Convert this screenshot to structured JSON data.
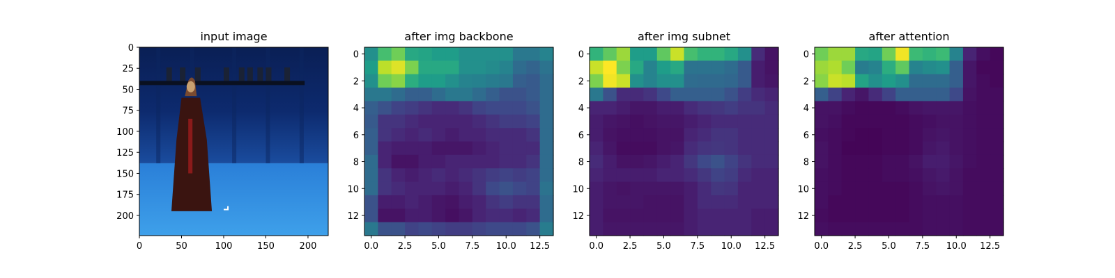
{
  "chart_data": [
    {
      "type": "image",
      "title": "input image",
      "xlim": [
        0,
        224
      ],
      "ylim": [
        224,
        0
      ],
      "xticks": [
        0,
        50,
        100,
        150,
        200
      ],
      "yticks": [
        0,
        25,
        50,
        75,
        100,
        125,
        150,
        175,
        200
      ],
      "colors": {
        "backdrop": "#0d2a6e",
        "floor": "#2f8fe0",
        "rail": "#0a1020",
        "figure": "#3a1410"
      }
    },
    {
      "type": "heatmap",
      "title": "after img backbone",
      "colormap": "viridis",
      "xticks": [
        "0.0",
        "2.5",
        "5.0",
        "7.5",
        "10.0",
        "12.5"
      ],
      "yticks": [
        "0",
        "2",
        "4",
        "6",
        "8",
        "10",
        "12"
      ],
      "values": [
        [
          0.5,
          0.7,
          0.78,
          0.6,
          0.58,
          0.55,
          0.55,
          0.5,
          0.5,
          0.5,
          0.5,
          0.4,
          0.4,
          0.45
        ],
        [
          0.55,
          0.9,
          0.95,
          0.8,
          0.6,
          0.6,
          0.6,
          0.5,
          0.5,
          0.48,
          0.45,
          0.35,
          0.32,
          0.38
        ],
        [
          0.5,
          0.78,
          0.82,
          0.62,
          0.55,
          0.55,
          0.5,
          0.45,
          0.44,
          0.42,
          0.4,
          0.3,
          0.28,
          0.35
        ],
        [
          0.4,
          0.4,
          0.35,
          0.3,
          0.3,
          0.35,
          0.4,
          0.4,
          0.35,
          0.3,
          0.25,
          0.25,
          0.28,
          0.35
        ],
        [
          0.3,
          0.25,
          0.2,
          0.18,
          0.15,
          0.12,
          0.12,
          0.15,
          0.2,
          0.22,
          0.22,
          0.22,
          0.25,
          0.35
        ],
        [
          0.28,
          0.15,
          0.15,
          0.12,
          0.1,
          0.1,
          0.1,
          0.1,
          0.12,
          0.15,
          0.18,
          0.18,
          0.2,
          0.35
        ],
        [
          0.3,
          0.15,
          0.12,
          0.1,
          0.12,
          0.1,
          0.08,
          0.1,
          0.1,
          0.12,
          0.12,
          0.12,
          0.15,
          0.35
        ],
        [
          0.3,
          0.1,
          0.08,
          0.08,
          0.08,
          0.06,
          0.06,
          0.06,
          0.08,
          0.1,
          0.12,
          0.12,
          0.12,
          0.35
        ],
        [
          0.35,
          0.1,
          0.05,
          0.05,
          0.08,
          0.08,
          0.1,
          0.1,
          0.1,
          0.1,
          0.12,
          0.12,
          0.15,
          0.35
        ],
        [
          0.35,
          0.15,
          0.1,
          0.08,
          0.1,
          0.12,
          0.1,
          0.12,
          0.15,
          0.18,
          0.2,
          0.18,
          0.2,
          0.35
        ],
        [
          0.35,
          0.15,
          0.12,
          0.1,
          0.1,
          0.1,
          0.08,
          0.1,
          0.15,
          0.22,
          0.25,
          0.22,
          0.2,
          0.38
        ],
        [
          0.25,
          0.08,
          0.08,
          0.1,
          0.08,
          0.06,
          0.05,
          0.08,
          0.1,
          0.15,
          0.18,
          0.15,
          0.15,
          0.35
        ],
        [
          0.25,
          0.05,
          0.05,
          0.08,
          0.08,
          0.06,
          0.04,
          0.06,
          0.1,
          0.12,
          0.12,
          0.1,
          0.12,
          0.35
        ],
        [
          0.4,
          0.25,
          0.25,
          0.2,
          0.22,
          0.2,
          0.18,
          0.18,
          0.2,
          0.22,
          0.22,
          0.22,
          0.25,
          0.42
        ]
      ]
    },
    {
      "type": "heatmap",
      "title": "after img subnet",
      "colormap": "viridis",
      "xticks": [
        "0.0",
        "2.5",
        "5.0",
        "7.5",
        "10.0",
        "12.5"
      ],
      "yticks": [
        "0",
        "2",
        "4",
        "6",
        "8",
        "10",
        "12"
      ],
      "values": [
        [
          0.65,
          0.75,
          0.85,
          0.55,
          0.55,
          0.75,
          0.92,
          0.7,
          0.65,
          0.65,
          0.6,
          0.5,
          0.12,
          0.05
        ],
        [
          0.92,
          1.0,
          0.8,
          0.6,
          0.45,
          0.55,
          0.6,
          0.38,
          0.38,
          0.38,
          0.35,
          0.28,
          0.08,
          0.05
        ],
        [
          0.8,
          0.98,
          0.92,
          0.5,
          0.45,
          0.5,
          0.5,
          0.35,
          0.34,
          0.34,
          0.33,
          0.28,
          0.08,
          0.06
        ],
        [
          0.4,
          0.25,
          0.12,
          0.12,
          0.15,
          0.22,
          0.3,
          0.3,
          0.3,
          0.3,
          0.25,
          0.18,
          0.12,
          0.1
        ],
        [
          0.1,
          0.1,
          0.08,
          0.06,
          0.06,
          0.08,
          0.08,
          0.12,
          0.15,
          0.16,
          0.18,
          0.15,
          0.15,
          0.12
        ],
        [
          0.08,
          0.06,
          0.05,
          0.04,
          0.05,
          0.06,
          0.06,
          0.08,
          0.1,
          0.12,
          0.12,
          0.12,
          0.12,
          0.12
        ],
        [
          0.08,
          0.05,
          0.04,
          0.04,
          0.04,
          0.05,
          0.05,
          0.1,
          0.12,
          0.15,
          0.15,
          0.12,
          0.12,
          0.12
        ],
        [
          0.1,
          0.06,
          0.03,
          0.03,
          0.03,
          0.05,
          0.06,
          0.12,
          0.15,
          0.16,
          0.15,
          0.12,
          0.12,
          0.12
        ],
        [
          0.12,
          0.08,
          0.05,
          0.05,
          0.06,
          0.08,
          0.1,
          0.16,
          0.22,
          0.25,
          0.2,
          0.15,
          0.12,
          0.12
        ],
        [
          0.1,
          0.08,
          0.08,
          0.08,
          0.08,
          0.1,
          0.1,
          0.12,
          0.16,
          0.2,
          0.18,
          0.12,
          0.1,
          0.1
        ],
        [
          0.08,
          0.06,
          0.05,
          0.06,
          0.06,
          0.06,
          0.06,
          0.08,
          0.12,
          0.16,
          0.15,
          0.1,
          0.1,
          0.1
        ],
        [
          0.08,
          0.06,
          0.06,
          0.06,
          0.05,
          0.05,
          0.05,
          0.08,
          0.12,
          0.12,
          0.12,
          0.1,
          0.1,
          0.1
        ],
        [
          0.08,
          0.05,
          0.05,
          0.05,
          0.05,
          0.05,
          0.05,
          0.08,
          0.1,
          0.1,
          0.1,
          0.1,
          0.08,
          0.08
        ],
        [
          0.08,
          0.06,
          0.06,
          0.06,
          0.06,
          0.06,
          0.06,
          0.08,
          0.1,
          0.1,
          0.1,
          0.1,
          0.08,
          0.08
        ]
      ]
    },
    {
      "type": "heatmap",
      "title": "after attention",
      "colormap": "viridis",
      "xticks": [
        "0.0",
        "2.5",
        "5.0",
        "7.5",
        "10.0",
        "12.5"
      ],
      "yticks": [
        "0",
        "2",
        "4",
        "6",
        "8",
        "10",
        "12"
      ],
      "values": [
        [
          0.78,
          0.85,
          0.85,
          0.6,
          0.58,
          0.78,
          0.98,
          0.68,
          0.65,
          0.68,
          0.45,
          0.1,
          0.04,
          0.02
        ],
        [
          0.85,
          0.88,
          0.78,
          0.42,
          0.45,
          0.62,
          0.75,
          0.45,
          0.48,
          0.5,
          0.3,
          0.06,
          0.02,
          0.02
        ],
        [
          0.82,
          0.92,
          0.9,
          0.58,
          0.5,
          0.55,
          0.5,
          0.35,
          0.35,
          0.35,
          0.3,
          0.06,
          0.03,
          0.02
        ],
        [
          0.3,
          0.2,
          0.1,
          0.06,
          0.12,
          0.2,
          0.3,
          0.3,
          0.3,
          0.3,
          0.22,
          0.05,
          0.03,
          0.03
        ],
        [
          0.05,
          0.05,
          0.03,
          0.02,
          0.02,
          0.02,
          0.03,
          0.05,
          0.06,
          0.06,
          0.06,
          0.04,
          0.03,
          0.03
        ],
        [
          0.05,
          0.04,
          0.02,
          0.02,
          0.02,
          0.02,
          0.02,
          0.03,
          0.04,
          0.05,
          0.05,
          0.04,
          0.03,
          0.03
        ],
        [
          0.04,
          0.03,
          0.02,
          0.01,
          0.01,
          0.02,
          0.02,
          0.03,
          0.05,
          0.06,
          0.05,
          0.04,
          0.03,
          0.03
        ],
        [
          0.05,
          0.03,
          0.01,
          0.01,
          0.01,
          0.02,
          0.02,
          0.03,
          0.06,
          0.07,
          0.05,
          0.04,
          0.03,
          0.03
        ],
        [
          0.05,
          0.03,
          0.02,
          0.02,
          0.02,
          0.03,
          0.03,
          0.05,
          0.08,
          0.08,
          0.06,
          0.04,
          0.03,
          0.03
        ],
        [
          0.04,
          0.03,
          0.02,
          0.02,
          0.02,
          0.03,
          0.03,
          0.04,
          0.06,
          0.07,
          0.05,
          0.03,
          0.03,
          0.03
        ],
        [
          0.04,
          0.03,
          0.02,
          0.02,
          0.02,
          0.02,
          0.02,
          0.03,
          0.05,
          0.06,
          0.05,
          0.03,
          0.03,
          0.03
        ],
        [
          0.04,
          0.02,
          0.02,
          0.02,
          0.02,
          0.02,
          0.02,
          0.03,
          0.04,
          0.04,
          0.04,
          0.03,
          0.03,
          0.03
        ],
        [
          0.03,
          0.02,
          0.02,
          0.02,
          0.02,
          0.02,
          0.02,
          0.03,
          0.04,
          0.04,
          0.04,
          0.03,
          0.03,
          0.03
        ],
        [
          0.04,
          0.03,
          0.03,
          0.03,
          0.03,
          0.03,
          0.03,
          0.03,
          0.04,
          0.04,
          0.04,
          0.03,
          0.03,
          0.03
        ]
      ]
    }
  ]
}
